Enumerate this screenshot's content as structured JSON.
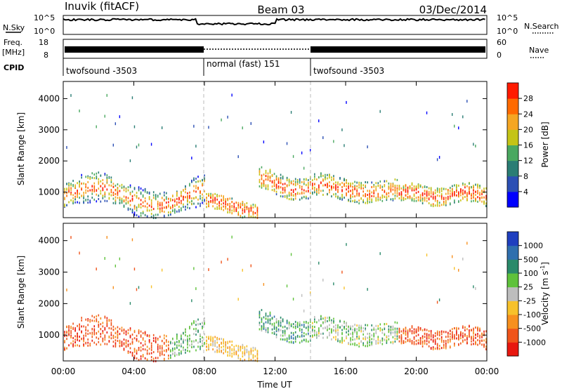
{
  "header": {
    "station": "Inuvik (fitACF)",
    "beam": "Beam 03",
    "date": "03/Dec/2014"
  },
  "side_labels": {
    "nsky": "N.Sky",
    "nsearch": "N.Search",
    "freq_line1": "Freq.",
    "freq_line2": "[MHz]",
    "nave": "Nave",
    "cpid": "CPID"
  },
  "noise_axis": {
    "left_ticks": [
      "10^5",
      "10^0"
    ],
    "right_ticks": [
      "10^5",
      "10^0"
    ]
  },
  "freq_axis": {
    "left_ticks": [
      "18",
      "8"
    ],
    "right_ticks": [
      "60",
      "0"
    ]
  },
  "cpid_segments": [
    {
      "label": "twofsound -3503",
      "start_hour": 0,
      "end_hour": 8
    },
    {
      "label": "normal (fast) 151",
      "start_hour": 8,
      "end_hour": 14
    },
    {
      "label": "twofsound -3503",
      "start_hour": 14,
      "end_hour": 24
    }
  ],
  "x_axis": {
    "title": "Time UT",
    "ticks": [
      "00:00",
      "04:00",
      "08:00",
      "12:00",
      "16:00",
      "20:00",
      "00:00"
    ],
    "range_hours": [
      0,
      24
    ]
  },
  "range_axis": {
    "title": "Slant Range [km]",
    "ticks": [
      1000,
      2000,
      3000,
      4000
    ],
    "range_km": [
      180,
      4550
    ]
  },
  "chart_data": [
    {
      "type": "heatmap",
      "name": "power",
      "colorbar_title": "Power [dB]",
      "colorbar_ticks": [
        "4",
        "8",
        "12",
        "16",
        "20",
        "24",
        "28"
      ],
      "colors": [
        "#0000ff",
        "#2b4fb4",
        "#2a7d74",
        "#4aa860",
        "#c4c416",
        "#f5a623",
        "#ff6a00",
        "#ff1a00"
      ],
      "xlim": [
        0,
        24
      ],
      "ylim": [
        180,
        4550
      ]
    },
    {
      "type": "heatmap",
      "name": "velocity",
      "colorbar_title": "Velocity [m s^-1]",
      "colorbar_ticks": [
        "1000",
        "500",
        "100",
        "25",
        "-25",
        "-100",
        "-500",
        "-1000"
      ],
      "colors": [
        "#1f3fbf",
        "#2f6fae",
        "#2a8a6a",
        "#5fc23b",
        "#bdbdbd",
        "#f7c12a",
        "#f7901e",
        "#f0541a",
        "#e8170f"
      ],
      "xlim": [
        0,
        24
      ],
      "ylim": [
        180,
        4550
      ]
    }
  ]
}
